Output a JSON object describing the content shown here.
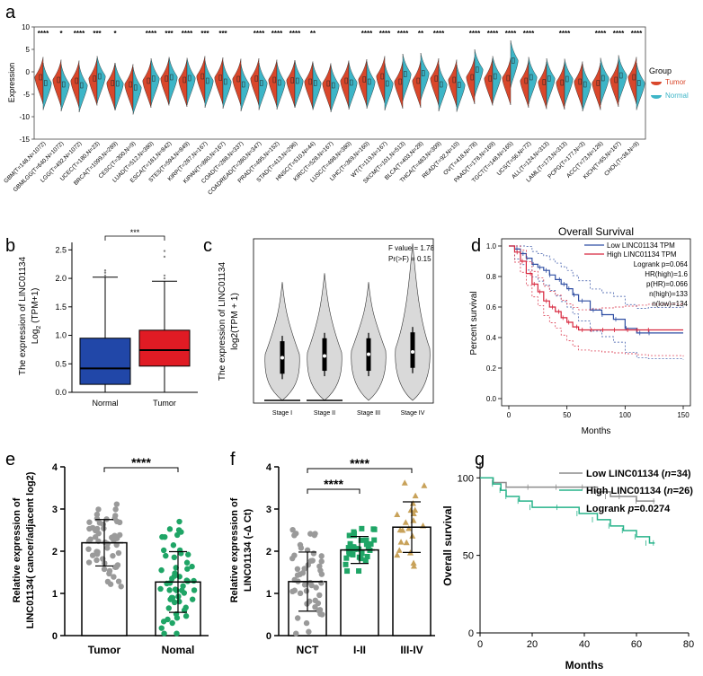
{
  "colors": {
    "tumor": "#d9472b",
    "normal": "#3db5c7",
    "box_normal": "#2147a8",
    "box_tumor": "#e01b24",
    "violin": "#d9d9d9",
    "km_low": "#2f4ea3",
    "km_high": "#d7263d",
    "gray_pts": "#9a9a9a",
    "green_pts": "#1fa566",
    "gold_pts": "#c8a25a",
    "g_low": "#8c8c8c",
    "g_high": "#27b38a"
  },
  "chart_data": [
    {
      "panel": "a",
      "type": "violin",
      "ylabel": "Expression",
      "ylim": [
        -15,
        10
      ],
      "yticks": [
        "10",
        "5",
        "0",
        "-5",
        "-10",
        "-15"
      ],
      "legend": {
        "title": "Group",
        "items": [
          "Tumor",
          "Normal"
        ],
        "position": "right"
      },
      "categories": [
        "GBM(T=148,N=1072)",
        "GBMLGG(T=640,N=1072)",
        "LGG(T=492,N=1072)",
        "UCEC(T=180,N=23)",
        "BRCA(T=1099,N=289)",
        "CESC(T=300,N=9)",
        "LUAD(T=512,N=380)",
        "ESCA(T=181,N=842)",
        "STES(T=594,N=849)",
        "KIRP(T=287,N=167)",
        "KIPAN(T=880,N=167)",
        "COAD(T=288,N=337)",
        "COADREAD(T=380,N=347)",
        "PRAD(T=495,N=152)",
        "STAD(T=413,N=296)",
        "HNSC(T=510,N=44)",
        "KIRC(T=528,N=167)",
        "LUSC(T=498,N=380)",
        "LIHC(T=369,N=160)",
        "WT(T=119,N=167)",
        "SKCM(T=101,N=513)",
        "BLCA(T=403,N=28)",
        "THCA(T=483,N=309)",
        "READ(T=92,N=10)",
        "OV(T=418,N=78)",
        "PAAD(T=178,N=169)",
        "TGCT(T=148,N=165)",
        "UCS(T=56,N=72)",
        "ALL(T=124,N=313)",
        "LAML(T=173,N=313)",
        "PCPG(T=177,N=3)",
        "ACC(T=73,N=126)",
        "KICH(T=65,N=167)",
        "CHOL(T=36,N=9)"
      ],
      "significance": [
        "****",
        "*",
        "****",
        "***",
        "*",
        "",
        "****",
        "***",
        "****",
        "***",
        "***",
        "",
        "****",
        "****",
        "****",
        "**",
        "",
        "",
        "****",
        "****",
        "****",
        "**",
        "****",
        "",
        "****",
        "****",
        "****",
        "****",
        "",
        "****",
        "",
        "****",
        "****",
        "****"
      ],
      "tumor_median": [
        -1.2,
        -1.8,
        -2.0,
        -1.5,
        -2.5,
        -2.8,
        -2.0,
        -1.5,
        -1.8,
        -1.0,
        -1.3,
        -1.6,
        -1.5,
        -1.8,
        -1.9,
        -2.2,
        -2.6,
        -2.0,
        -1.7,
        -1.0,
        -2.2,
        -2.0,
        -1.5,
        -1.8,
        -1.2,
        -1.5,
        -1.4,
        -2.0,
        -2.3,
        -2.4,
        -2.2,
        -2.5,
        -1.8,
        -1.2
      ],
      "normal_median": [
        -2.5,
        -2.8,
        -3.0,
        -1.0,
        -2.6,
        -3.5,
        -1.5,
        -1.2,
        -1.4,
        -2.0,
        -2.2,
        -2.8,
        -2.5,
        -2.4,
        -2.0,
        -2.5,
        -3.0,
        -2.4,
        -2.2,
        -2.6,
        -0.5,
        -0.3,
        -2.8,
        -2.9,
        0.5,
        -1.0,
        2.5,
        -1.2,
        -1.5,
        -1.6,
        -2.8,
        -1.4,
        -0.8,
        -2.5
      ]
    },
    {
      "panel": "b",
      "type": "boxplot",
      "ylabel": "The expression of LINC01134 Log2 (TPM+1)",
      "ylabel_line1": "The expression of LINC01134",
      "ylabel_line2": "Log",
      "ylabel_sub": "2",
      "ylabel_tail": " (TPM+1)",
      "ylim": [
        0,
        2.6
      ],
      "yticks": [
        "0.0",
        "0.5",
        "1.0",
        "1.5",
        "2.0",
        "2.5"
      ],
      "categories": [
        "Normal",
        "Tumor"
      ],
      "boxes": [
        {
          "q1": 0.14,
          "median": 0.42,
          "q3": 0.95,
          "lower": 0.0,
          "upper": 2.02,
          "outliers": [
            2.05,
            2.1,
            2.14
          ]
        },
        {
          "q1": 0.46,
          "median": 0.74,
          "q3": 1.09,
          "lower": 0.0,
          "upper": 1.95,
          "outliers": [
            2.0,
            2.05,
            2.38,
            2.48
          ]
        }
      ],
      "significance": "***"
    },
    {
      "panel": "c",
      "type": "violin",
      "ylabel": "The expression of LINC01134 log2(TPM + 1)",
      "ylabel_line1": "The expression of LINC01134",
      "ylabel_line2": "log2(TPM + 1)",
      "ylim": [
        0,
        2.7
      ],
      "categories": [
        "Stage I",
        "Stage II",
        "Stage III",
        "Stage IV"
      ],
      "medians": [
        0.72,
        0.75,
        0.78,
        0.82
      ],
      "q1": [
        0.45,
        0.5,
        0.5,
        0.55
      ],
      "q3": [
        1.0,
        1.05,
        1.05,
        1.15
      ],
      "max": [
        2.0,
        2.15,
        2.0,
        2.65
      ],
      "annotations": [
        "F value = 1.78",
        "Pr(>F) = 0.15"
      ]
    },
    {
      "panel": "d",
      "type": "line",
      "title": "Overall Survival",
      "xlabel": "Months",
      "ylabel": "Percent survival",
      "xlim": [
        0,
        150
      ],
      "ylim": [
        0,
        1
      ],
      "xticks": [
        "0",
        "50",
        "100",
        "150"
      ],
      "yticks": [
        "0.0",
        "0.2",
        "0.4",
        "0.6",
        "0.8",
        "1.0"
      ],
      "legend": [
        "Low LINC01134 TPM",
        "High LINC01134 TPM"
      ],
      "series": [
        {
          "name": "Low LINC01134 TPM",
          "x": [
            0,
            5,
            10,
            15,
            20,
            25,
            30,
            35,
            40,
            45,
            50,
            55,
            60,
            70,
            80,
            90,
            100,
            110,
            120,
            150
          ],
          "y": [
            1.0,
            0.98,
            0.95,
            0.92,
            0.88,
            0.86,
            0.84,
            0.81,
            0.78,
            0.75,
            0.72,
            0.68,
            0.64,
            0.58,
            0.55,
            0.52,
            0.46,
            0.43,
            0.43,
            0.43
          ]
        },
        {
          "name": "High LINC01134 TPM",
          "x": [
            0,
            5,
            10,
            15,
            20,
            25,
            30,
            35,
            40,
            45,
            50,
            55,
            60,
            70,
            80,
            90,
            100,
            110,
            120,
            150
          ],
          "y": [
            1.0,
            0.96,
            0.9,
            0.82,
            0.75,
            0.7,
            0.64,
            0.6,
            0.57,
            0.53,
            0.5,
            0.47,
            0.45,
            0.45,
            0.45,
            0.45,
            0.45,
            0.45,
            0.45,
            0.45
          ]
        }
      ],
      "stats": [
        "Logrank p=0.064",
        "HR(high)=1.6",
        "p(HR)=0.066",
        "n(high)=133",
        "n(low)=134"
      ]
    },
    {
      "panel": "e",
      "type": "bar",
      "ylabel": "Relative expression of LINC01134( cancer/adjacent  log2)",
      "ylabel_line1": "Relative expression of",
      "ylabel_line2": "LINC01134( cancer/adjacent  log2)",
      "ylim": [
        0,
        4
      ],
      "yticks": [
        "0",
        "1",
        "2",
        "3",
        "4"
      ],
      "categories": [
        "Tumor",
        "Nomal"
      ],
      "values": [
        2.2,
        1.27
      ],
      "sd": [
        0.55,
        0.72
      ],
      "significance": "****"
    },
    {
      "panel": "f",
      "type": "bar",
      "ylabel": "Relative expression of LINC01134 (-Δ Ct)",
      "ylabel_line1": "Relative expression of",
      "ylabel_line2": "LINC01134 (-Δ Ct)",
      "ylim": [
        0,
        4
      ],
      "yticks": [
        "0",
        "1",
        "2",
        "3",
        "4"
      ],
      "categories": [
        "NCT",
        "I-II",
        "III-IV"
      ],
      "values": [
        1.28,
        2.03,
        2.57
      ],
      "sd": [
        0.7,
        0.32,
        0.6
      ],
      "significance": [
        "****",
        "****"
      ]
    },
    {
      "panel": "g",
      "type": "line",
      "xlabel": "Months",
      "ylabel": "Overall survival",
      "xlim": [
        0,
        80
      ],
      "ylim": [
        0,
        110
      ],
      "xticks": [
        "0",
        "20",
        "40",
        "60",
        "80"
      ],
      "yticks": [
        "0",
        "50",
        "100"
      ],
      "series": [
        {
          "name": "Low LINC01134 (n=34)",
          "x": [
            0,
            5,
            10,
            20,
            30,
            40,
            45,
            50,
            55,
            60,
            67
          ],
          "y": [
            100,
            97,
            94,
            94,
            94,
            94,
            91,
            88,
            88,
            85,
            85
          ]
        },
        {
          "name": "High LINC01134 (n=26)",
          "x": [
            0,
            5,
            8,
            10,
            15,
            20,
            30,
            38,
            45,
            50,
            55,
            60,
            65,
            67
          ],
          "y": [
            100,
            96,
            92,
            88,
            85,
            81,
            81,
            77,
            73,
            69,
            66,
            62,
            58,
            58
          ]
        }
      ],
      "legend_low_prefix": "Low LINC01134 (",
      "legend_high_prefix": "High LINC01134 (",
      "legend_n_italic": "n",
      "legend_low_n": "=34)",
      "legend_high_n": "=26)",
      "stat_prefix": "Logrank ",
      "stat_p": "p",
      "stat_value": "=0.0274"
    }
  ],
  "panel_labels": [
    "a",
    "b",
    "c",
    "d",
    "e",
    "f",
    "g"
  ]
}
